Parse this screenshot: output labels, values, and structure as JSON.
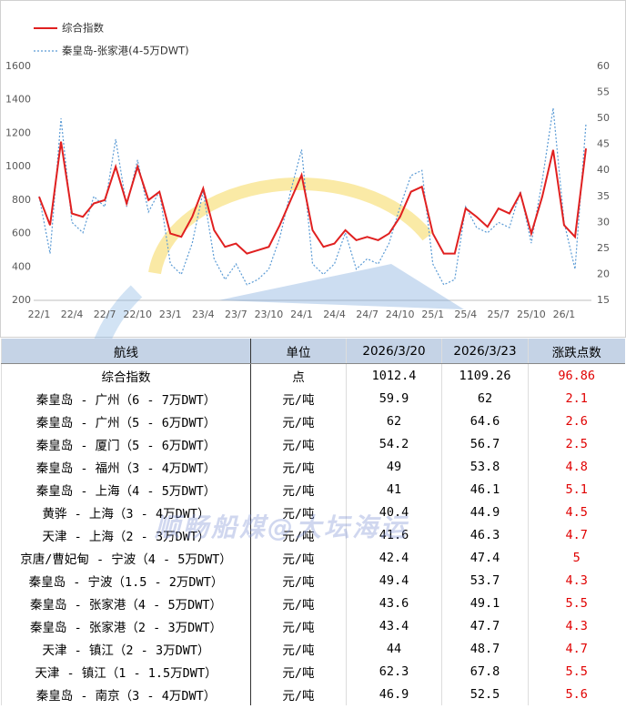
{
  "chart_data": {
    "type": "line",
    "categories": [
      "22/1",
      null,
      null,
      "22/4",
      null,
      null,
      "22/7",
      null,
      null,
      "22/10",
      null,
      null,
      "23/1",
      null,
      null,
      "23/4",
      null,
      null,
      "23/7",
      null,
      null,
      "23/10",
      null,
      null,
      "24/1",
      null,
      null,
      "24/4",
      null,
      null,
      "24/7",
      null,
      null,
      "24/10",
      null,
      null,
      "25/1",
      null,
      null,
      "25/4",
      null,
      null,
      "25/7",
      null,
      null,
      "25/10",
      null,
      null,
      "26/1",
      null,
      null
    ],
    "series": [
      {
        "name": "综合指数",
        "color": "#e02020",
        "values": [
          820,
          650,
          1150,
          720,
          700,
          780,
          800,
          1000,
          780,
          1000,
          800,
          850,
          600,
          580,
          700,
          870,
          620,
          520,
          540,
          480,
          500,
          520,
          650,
          800,
          950,
          620,
          520,
          540,
          620,
          560,
          580,
          560,
          600,
          700,
          850,
          880,
          600,
          480,
          480,
          750,
          700,
          640,
          750,
          720,
          840,
          600,
          820,
          1100,
          650,
          580,
          1109
        ]
      },
      {
        "name": "秦皇岛-张家港(4-5万DWT)",
        "color": "#5b9bd5",
        "axis": "y2",
        "values": [
          35,
          24,
          50,
          30,
          28,
          35,
          33,
          46,
          33,
          42,
          32,
          36,
          22,
          20,
          26,
          36,
          23,
          19,
          22,
          18,
          19,
          21,
          27,
          36,
          44,
          22,
          20,
          22,
          28,
          21,
          23,
          22,
          26,
          33,
          39,
          40,
          22,
          18,
          19,
          33,
          29,
          28,
          30,
          29,
          36,
          26,
          38,
          52,
          30,
          21,
          49
        ]
      }
    ],
    "ylim": [
      200,
      1600
    ],
    "yticks": [
      200,
      400,
      600,
      800,
      1000,
      1200,
      1400,
      1600
    ],
    "y2lim": [
      15,
      60
    ],
    "y2ticks": [
      15,
      20,
      25,
      30,
      35,
      40,
      45,
      50,
      55,
      60
    ]
  },
  "table": {
    "header": [
      "航线",
      "单位",
      "2026/3/20",
      "2026/3/23",
      "涨跌点数"
    ],
    "rows": [
      [
        "综合指数",
        "点",
        "1012.4",
        "1109.26",
        "96.86"
      ],
      [
        "秦皇岛 - 广州（6 - 7万DWT）",
        "元/吨",
        "59.9",
        "62",
        "2.1"
      ],
      [
        "秦皇岛 - 广州（5 - 6万DWT）",
        "元/吨",
        "62",
        "64.6",
        "2.6"
      ],
      [
        "秦皇岛 - 厦门（5 - 6万DWT）",
        "元/吨",
        "54.2",
        "56.7",
        "2.5"
      ],
      [
        "秦皇岛 - 福州（3 - 4万DWT）",
        "元/吨",
        "49",
        "53.8",
        "4.8"
      ],
      [
        "秦皇岛 - 上海（4 - 5万DWT）",
        "元/吨",
        "41",
        "46.1",
        "5.1"
      ],
      [
        "黄骅 - 上海（3 - 4万DWT）",
        "元/吨",
        "40.4",
        "44.9",
        "4.5"
      ],
      [
        "天津 - 上海（2 - 3万DWT）",
        "元/吨",
        "41.6",
        "46.3",
        "4.7"
      ],
      [
        "京唐/曹妃甸 - 宁波（4 - 5万DWT）",
        "元/吨",
        "42.4",
        "47.4",
        "5"
      ],
      [
        "秦皇岛 - 宁波（1.5 - 2万DWT）",
        "元/吨",
        "49.4",
        "53.7",
        "4.3"
      ],
      [
        "秦皇岛 - 张家港（4 - 5万DWT）",
        "元/吨",
        "43.6",
        "49.1",
        "5.5"
      ],
      [
        "秦皇岛 - 张家港（2 - 3万DWT）",
        "元/吨",
        "43.4",
        "47.7",
        "4.3"
      ],
      [
        "天津 - 镇江（2 - 3万DWT）",
        "元/吨",
        "44",
        "48.7",
        "4.7"
      ],
      [
        "天津 - 镇江（1 - 1.5万DWT）",
        "元/吨",
        "62.3",
        "67.8",
        "5.5"
      ],
      [
        "秦皇岛 - 南京（3 - 4万DWT）",
        "元/吨",
        "46.9",
        "52.5",
        "5.6"
      ]
    ]
  },
  "watermark": "顺畅船煤@大坛海运"
}
